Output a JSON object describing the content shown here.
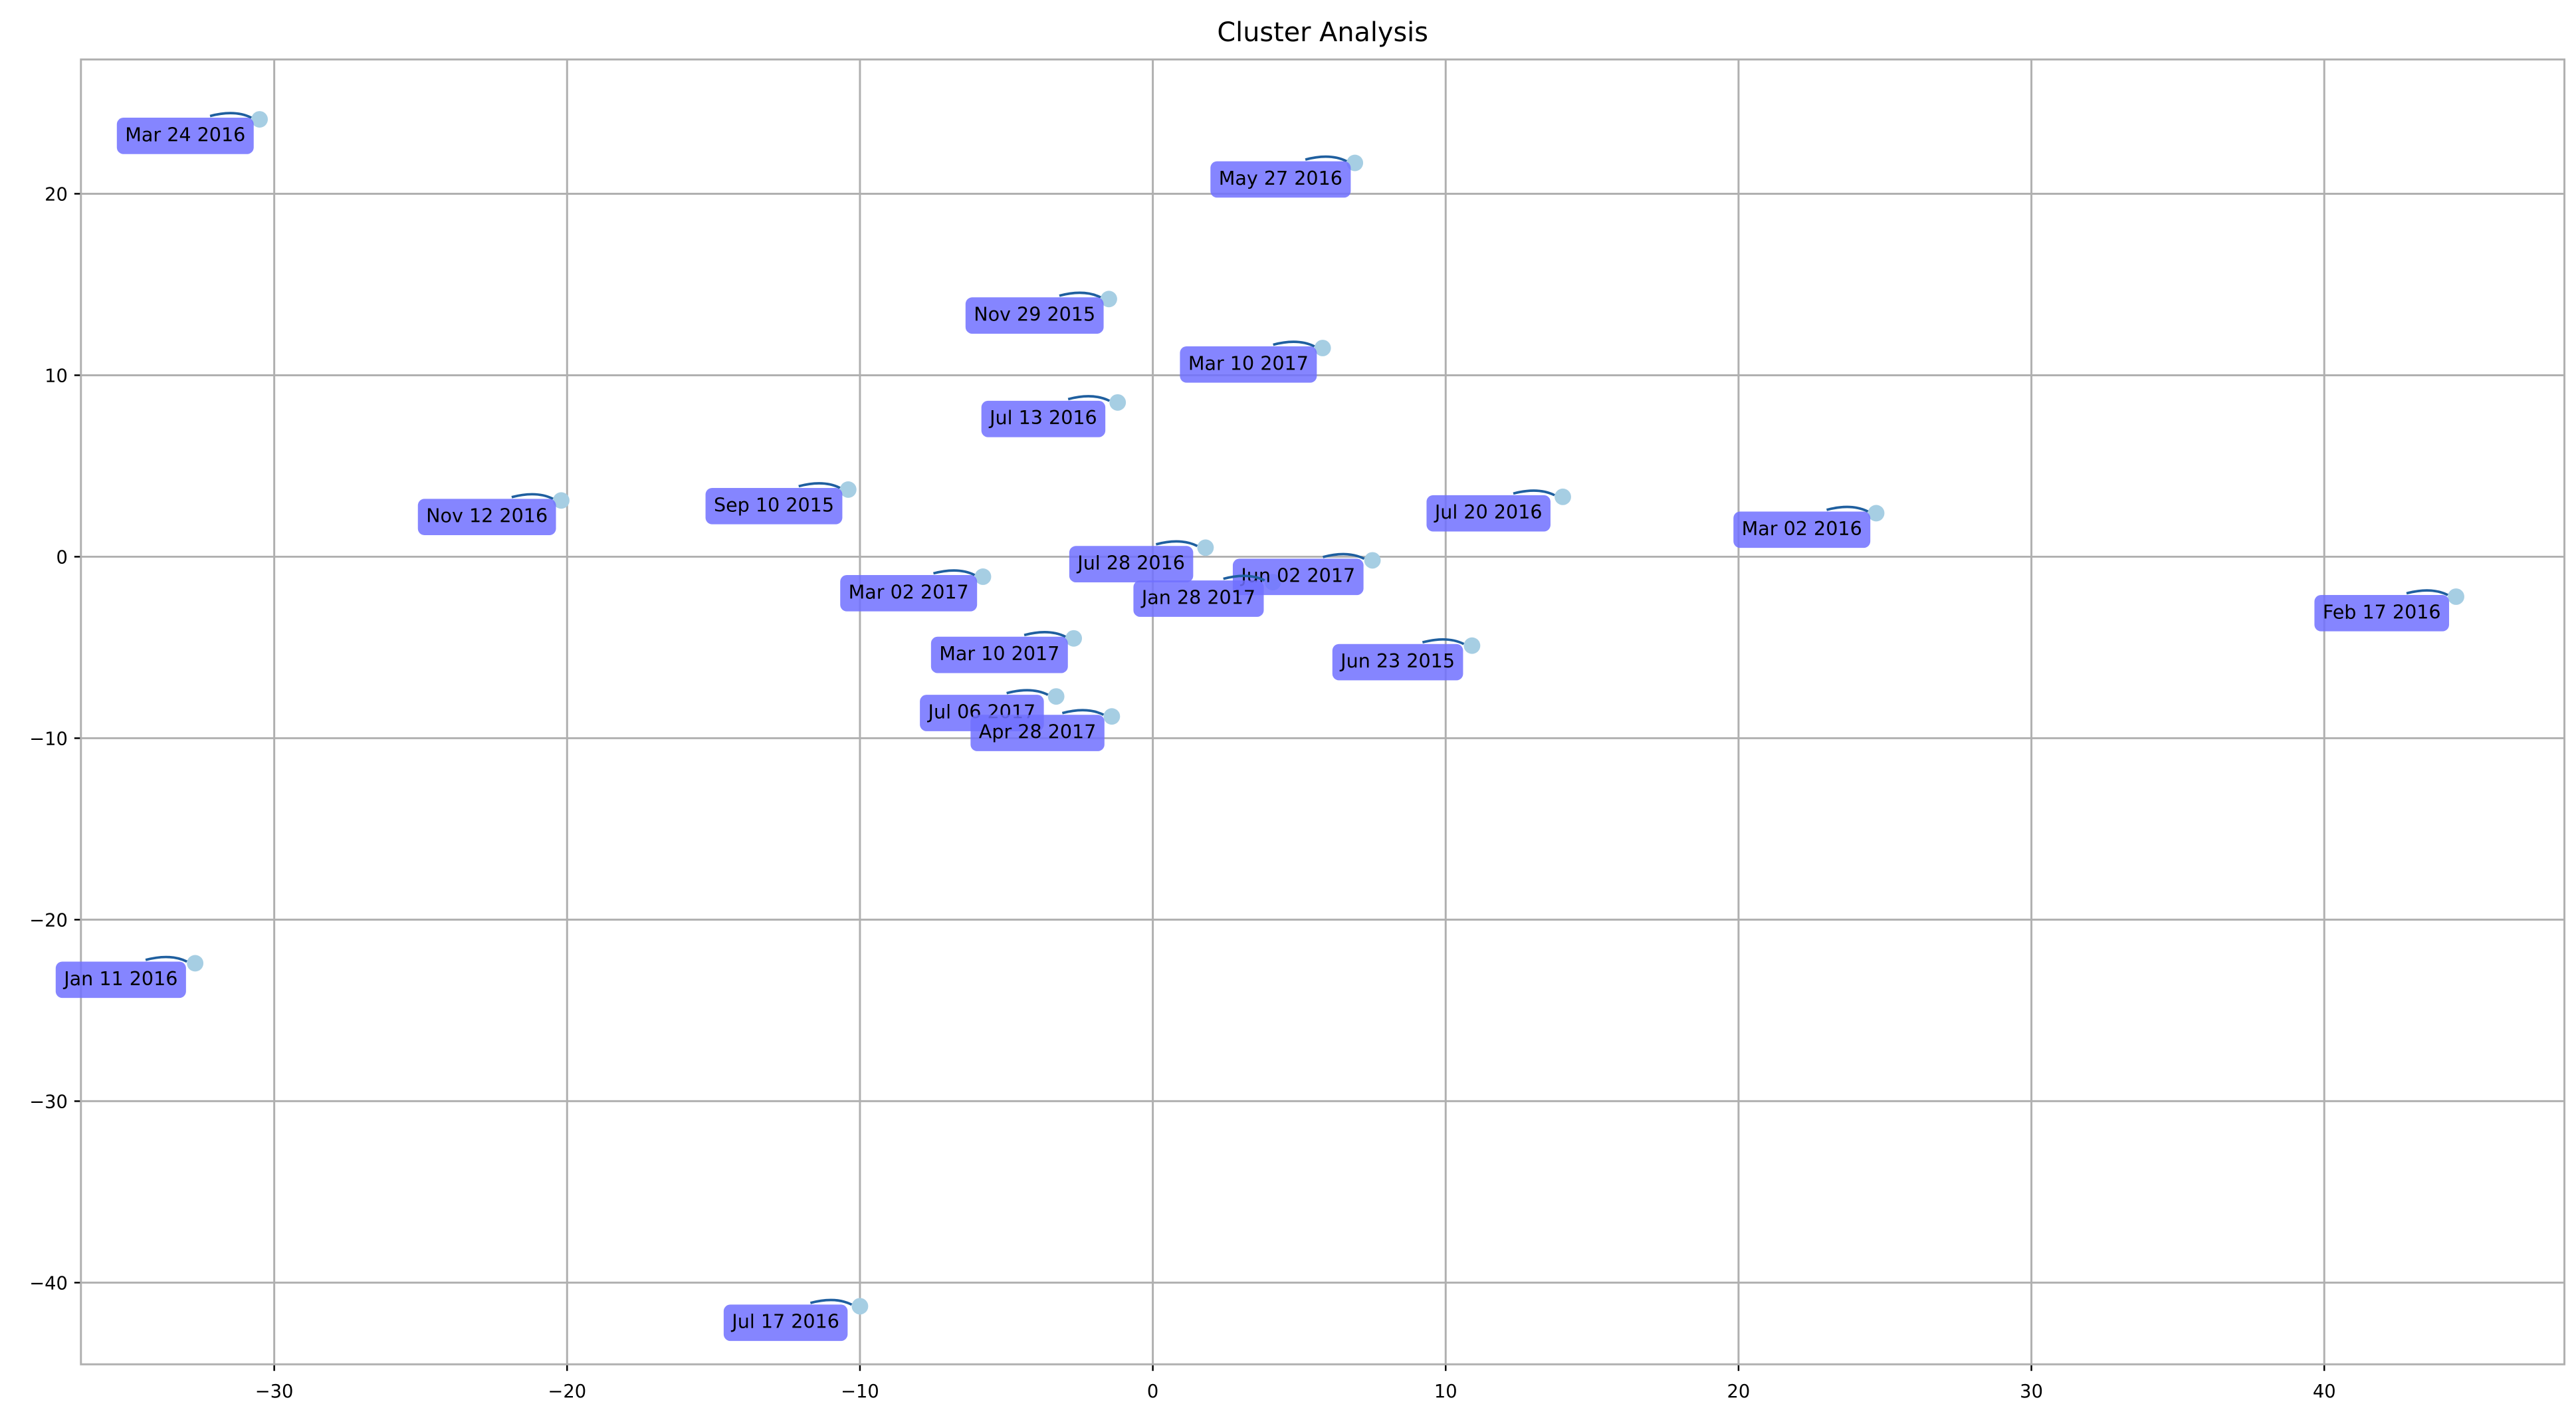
{
  "chart_data": {
    "type": "scatter",
    "title": "Cluster Analysis",
    "x": [
      -30.5,
      6.9,
      -1.5,
      5.8,
      -1.2,
      -20.2,
      -10.4,
      14.0,
      24.7,
      1.8,
      7.5,
      -5.8,
      4.1,
      44.5,
      -2.7,
      10.9,
      -3.3,
      -1.4,
      -32.7,
      -10.0
    ],
    "values": [
      24.1,
      21.7,
      14.2,
      11.5,
      8.5,
      3.1,
      3.7,
      3.3,
      2.4,
      0.5,
      -0.2,
      -1.1,
      -1.4,
      -2.2,
      -4.5,
      -4.9,
      -7.7,
      -8.8,
      -22.4,
      -41.3
    ],
    "labels": [
      "Mar 24 2016",
      "May 27 2016",
      "Nov 29 2015",
      "Mar 10 2017",
      "Jul 13 2016",
      "Nov 12 2016",
      "Sep 10 2015",
      "Jul 20 2016",
      "Mar 02 2016",
      "Jul 28 2016",
      "Jun 02 2017",
      "Mar 02 2017",
      "Jan 28 2017",
      "Feb 17 2016",
      "Mar 10 2017",
      "Jun 23 2015",
      "Jul 06 2017",
      "Apr 28 2017",
      "Jan 11 2016",
      "Jul 17 2016"
    ],
    "color": "#a6cee3",
    "label_color": "#7070ff",
    "arrow_color": "#1f5f9f",
    "xlim": [
      -36.6,
      48.2
    ],
    "ylim": [
      -44.5,
      27.4
    ],
    "xticks": [
      {
        "value": -30,
        "label": "−30"
      },
      {
        "value": -20,
        "label": "−20"
      },
      {
        "value": -10,
        "label": "−10"
      },
      0,
      10,
      20,
      30,
      40
    ],
    "yticks": [
      {
        "value": -40,
        "label": "−40"
      },
      {
        "value": -30,
        "label": "−30"
      },
      {
        "value": -20,
        "label": "−20"
      },
      {
        "value": -10,
        "label": "−10"
      },
      0,
      10,
      20
    ],
    "grid": true
  }
}
